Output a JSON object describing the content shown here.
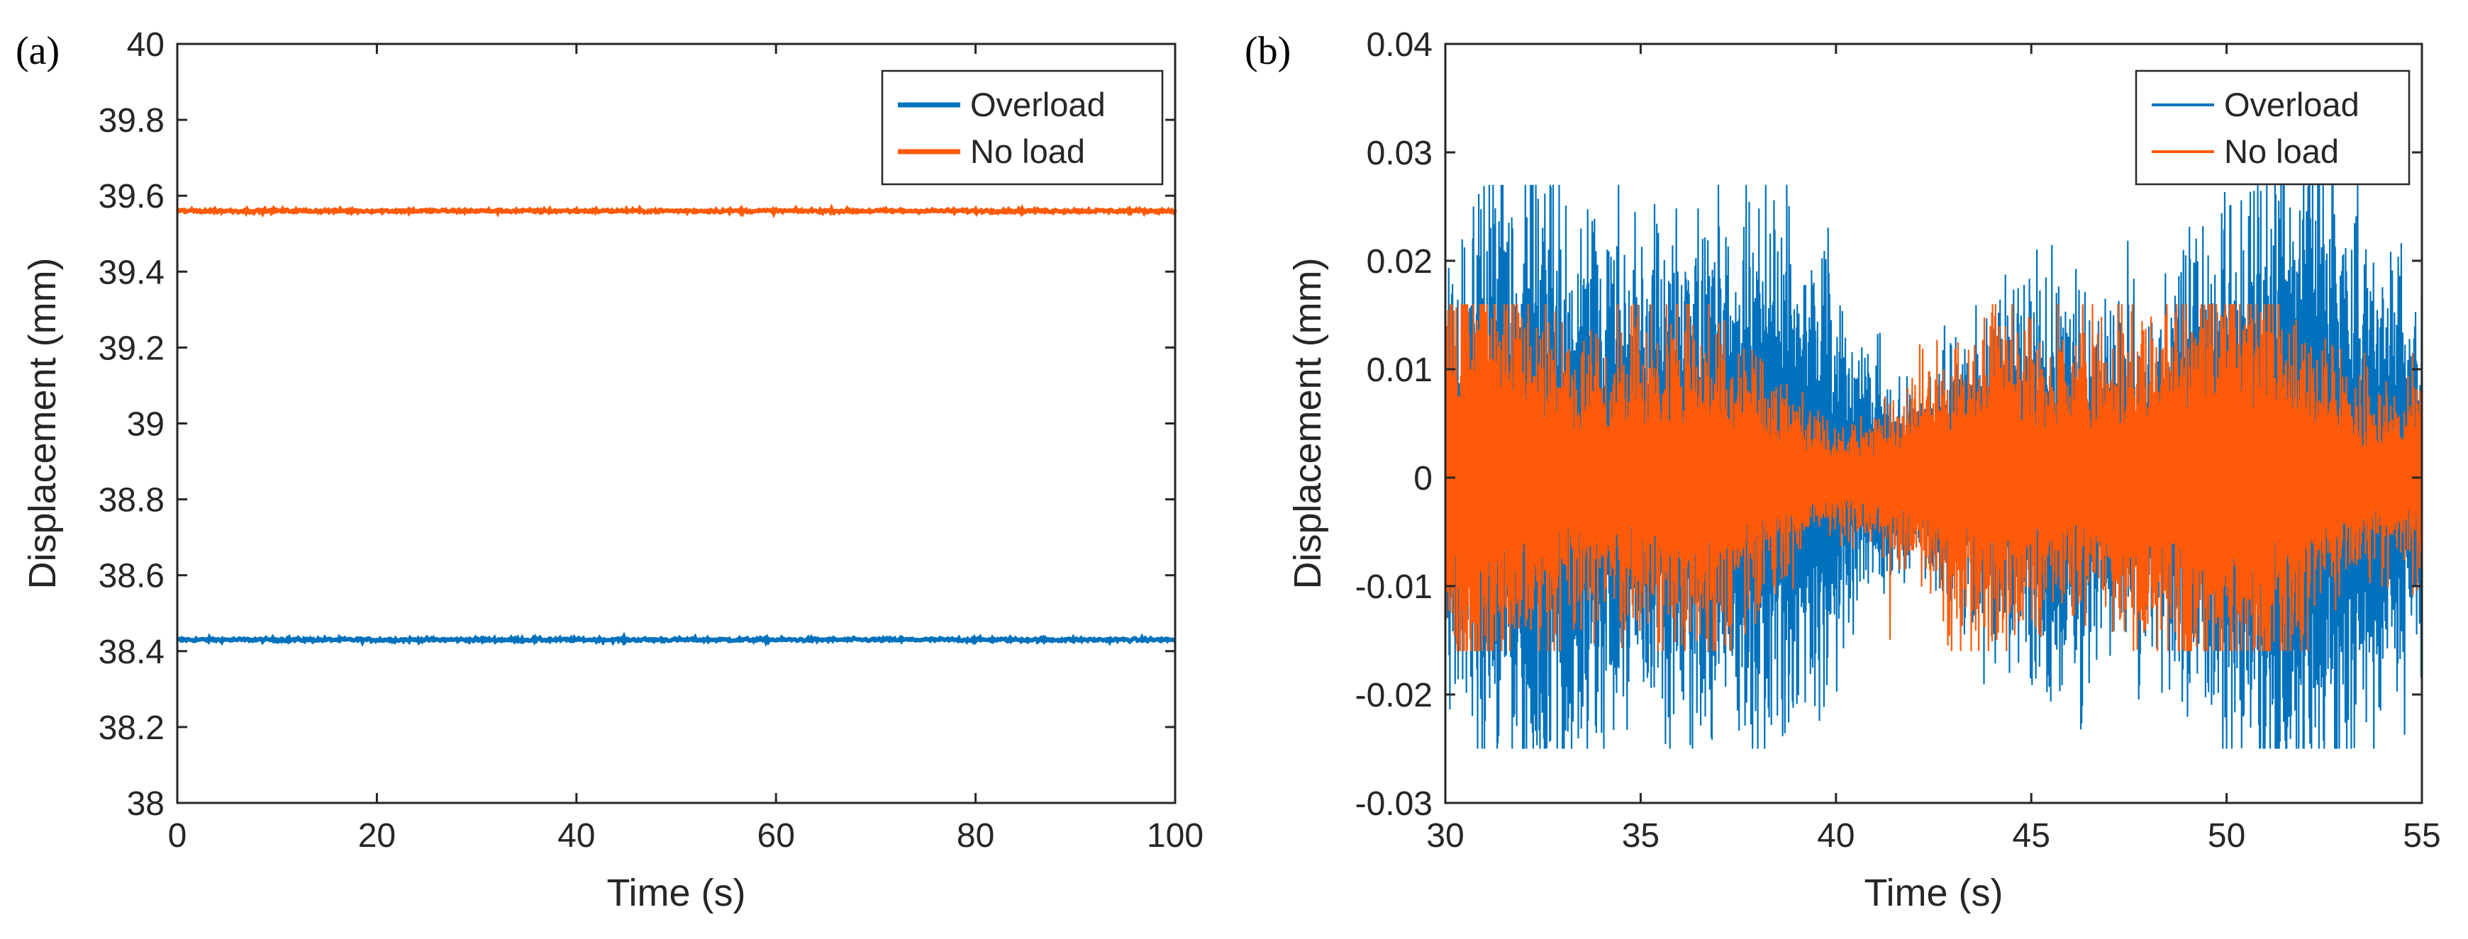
{
  "colors": {
    "overload": "#0072BD",
    "no_load": "#FF5A0A",
    "axis": "#262626"
  },
  "chart_data": [
    {
      "type": "line",
      "panel": "(a)",
      "xlabel": "Time (s)",
      "ylabel": "Displacement (mm)",
      "xlim": [
        0,
        100
      ],
      "ylim": [
        38,
        40
      ],
      "xticks": [
        0,
        20,
        40,
        60,
        80,
        100
      ],
      "xtick_labels": [
        "0",
        "20",
        "40",
        "60",
        "80",
        "100"
      ],
      "yticks": [
        38,
        38.2,
        38.4,
        38.6,
        38.8,
        39,
        39.2,
        39.4,
        39.6,
        39.8,
        40
      ],
      "ytick_labels": [
        "38",
        "38.2",
        "38.4",
        "38.6",
        "38.8",
        "39",
        "39.2",
        "39.4",
        "39.6",
        "39.8",
        "40"
      ],
      "legend_position": "top-right",
      "series": [
        {
          "name": "Overload",
          "color": "#0072BD",
          "mean": 38.43,
          "noise_amplitude": 0.004
        },
        {
          "name": "No load",
          "color": "#FF5A0A",
          "mean": 39.56,
          "noise_amplitude": 0.004
        }
      ]
    },
    {
      "type": "line",
      "panel": "(b)",
      "xlabel": "Time (s)",
      "ylabel": "Displacement (mm)",
      "xlim": [
        30,
        55
      ],
      "ylim": [
        -0.03,
        0.04
      ],
      "xticks": [
        30,
        35,
        40,
        45,
        50,
        55
      ],
      "xtick_labels": [
        "30",
        "35",
        "40",
        "45",
        "50",
        "55"
      ],
      "yticks": [
        -0.03,
        -0.02,
        -0.01,
        0,
        0.01,
        0.02,
        0.03,
        0.04
      ],
      "ytick_labels": [
        "-0.03",
        "-0.02",
        "-0.01",
        "0",
        "0.01",
        "0.02",
        "0.03",
        "0.04"
      ],
      "legend_position": "top-right",
      "series": [
        {
          "name": "Overload",
          "color": "#0072BD",
          "mean": 0,
          "typical_envelope": 0.012,
          "max": 0.027,
          "min": -0.025
        },
        {
          "name": "No load",
          "color": "#FF5A0A",
          "mean": 0,
          "typical_envelope": 0.008,
          "max": 0.016,
          "min": -0.016
        }
      ]
    }
  ]
}
